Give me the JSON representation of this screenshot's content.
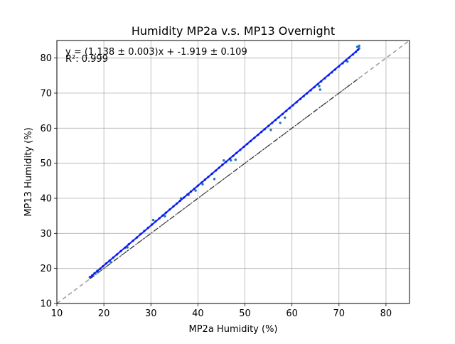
{
  "chart_data": {
    "type": "scatter",
    "title": "Humidity MP2a v.s. MP13 Overnight",
    "xlabel": "MP2a Humidity (%)",
    "ylabel": "MP13 Humidity (%)",
    "xlim": [
      10,
      85
    ],
    "ylim": [
      10,
      85
    ],
    "xticks": [
      "10",
      "20",
      "30",
      "40",
      "50",
      "60",
      "70",
      "80"
    ],
    "yticks": [
      "10",
      "20",
      "30",
      "40",
      "50",
      "60",
      "70",
      "80"
    ],
    "grid": true,
    "annotation_lines": [
      "y = (1.138 ± 0.003)x + -1.919 ± 0.109",
      "R²: 0.999"
    ],
    "fit": {
      "slope": 1.138,
      "intercept": -1.919
    },
    "points": [
      [
        17.0,
        17.5
      ],
      [
        17.5,
        18.0
      ],
      [
        18.0,
        18.6
      ],
      [
        18.6,
        19.3
      ],
      [
        19.2,
        19.9
      ],
      [
        19.8,
        20.6
      ],
      [
        20.5,
        21.4
      ],
      [
        21.2,
        22.2
      ],
      [
        22.0,
        23.1
      ],
      [
        22.8,
        24.0
      ],
      [
        23.6,
        24.9
      ],
      [
        24.5,
        25.9
      ],
      [
        25.3,
        26.9
      ],
      [
        26.2,
        27.9
      ],
      [
        27.0,
        28.8
      ],
      [
        27.8,
        29.8
      ],
      [
        28.6,
        30.7
      ],
      [
        29.4,
        31.6
      ],
      [
        30.2,
        32.5
      ],
      [
        31.0,
        33.4
      ],
      [
        31.8,
        34.3
      ],
      [
        32.5,
        35.1
      ],
      [
        33.2,
        35.9
      ],
      [
        34.0,
        36.8
      ],
      [
        34.8,
        37.7
      ],
      [
        35.5,
        38.5
      ],
      [
        36.2,
        39.3
      ],
      [
        37.0,
        40.2
      ],
      [
        37.8,
        41.1
      ],
      [
        38.5,
        41.9
      ],
      [
        39.2,
        42.7
      ],
      [
        40.0,
        43.6
      ],
      [
        40.8,
        44.5
      ],
      [
        41.5,
        45.3
      ],
      [
        42.2,
        46.1
      ],
      [
        43.0,
        47.0
      ],
      [
        43.8,
        47.9
      ],
      [
        44.5,
        48.7
      ],
      [
        45.2,
        49.5
      ],
      [
        46.0,
        50.4
      ],
      [
        46.8,
        51.3
      ],
      [
        47.5,
        52.1
      ],
      [
        48.2,
        52.9
      ],
      [
        49.0,
        53.8
      ],
      [
        49.8,
        54.7
      ],
      [
        50.5,
        55.5
      ],
      [
        51.2,
        56.3
      ],
      [
        52.0,
        57.2
      ],
      [
        52.8,
        58.1
      ],
      [
        53.5,
        58.9
      ],
      [
        54.2,
        59.7
      ],
      [
        55.0,
        60.6
      ],
      [
        55.8,
        61.5
      ],
      [
        56.5,
        62.3
      ],
      [
        57.2,
        63.1
      ],
      [
        58.0,
        64.0
      ],
      [
        58.8,
        64.9
      ],
      [
        59.5,
        65.7
      ],
      [
        60.2,
        66.5
      ],
      [
        61.0,
        67.4
      ],
      [
        61.8,
        68.3
      ],
      [
        62.5,
        69.1
      ],
      [
        63.2,
        69.9
      ],
      [
        64.0,
        70.8
      ],
      [
        64.8,
        71.7
      ],
      [
        65.5,
        72.5
      ],
      [
        66.2,
        73.3
      ],
      [
        67.0,
        74.2
      ],
      [
        67.8,
        75.1
      ],
      [
        68.5,
        75.9
      ],
      [
        69.2,
        76.7
      ],
      [
        70.0,
        77.6
      ],
      [
        70.8,
        78.5
      ],
      [
        71.5,
        79.3
      ],
      [
        72.2,
        80.1
      ],
      [
        73.0,
        81.0
      ],
      [
        73.6,
        81.7
      ],
      [
        74.0,
        82.3
      ],
      [
        74.3,
        82.8
      ],
      [
        74.3,
        83.5
      ],
      [
        18.8,
        19.0
      ],
      [
        21.5,
        21.8
      ],
      [
        25.0,
        26.0
      ],
      [
        30.5,
        33.8
      ],
      [
        33.0,
        34.9
      ],
      [
        36.4,
        40.0
      ],
      [
        38.0,
        41.0
      ],
      [
        39.5,
        42.2
      ],
      [
        41.0,
        44.0
      ],
      [
        43.5,
        45.5
      ],
      [
        45.5,
        50.8
      ],
      [
        47.0,
        50.8
      ],
      [
        48.0,
        51.0
      ],
      [
        55.5,
        59.5
      ],
      [
        57.5,
        61.5
      ],
      [
        58.5,
        63.0
      ],
      [
        66.0,
        71.0
      ],
      [
        65.8,
        72.0
      ],
      [
        71.8,
        79.0
      ],
      [
        73.9,
        83.2
      ]
    ]
  }
}
